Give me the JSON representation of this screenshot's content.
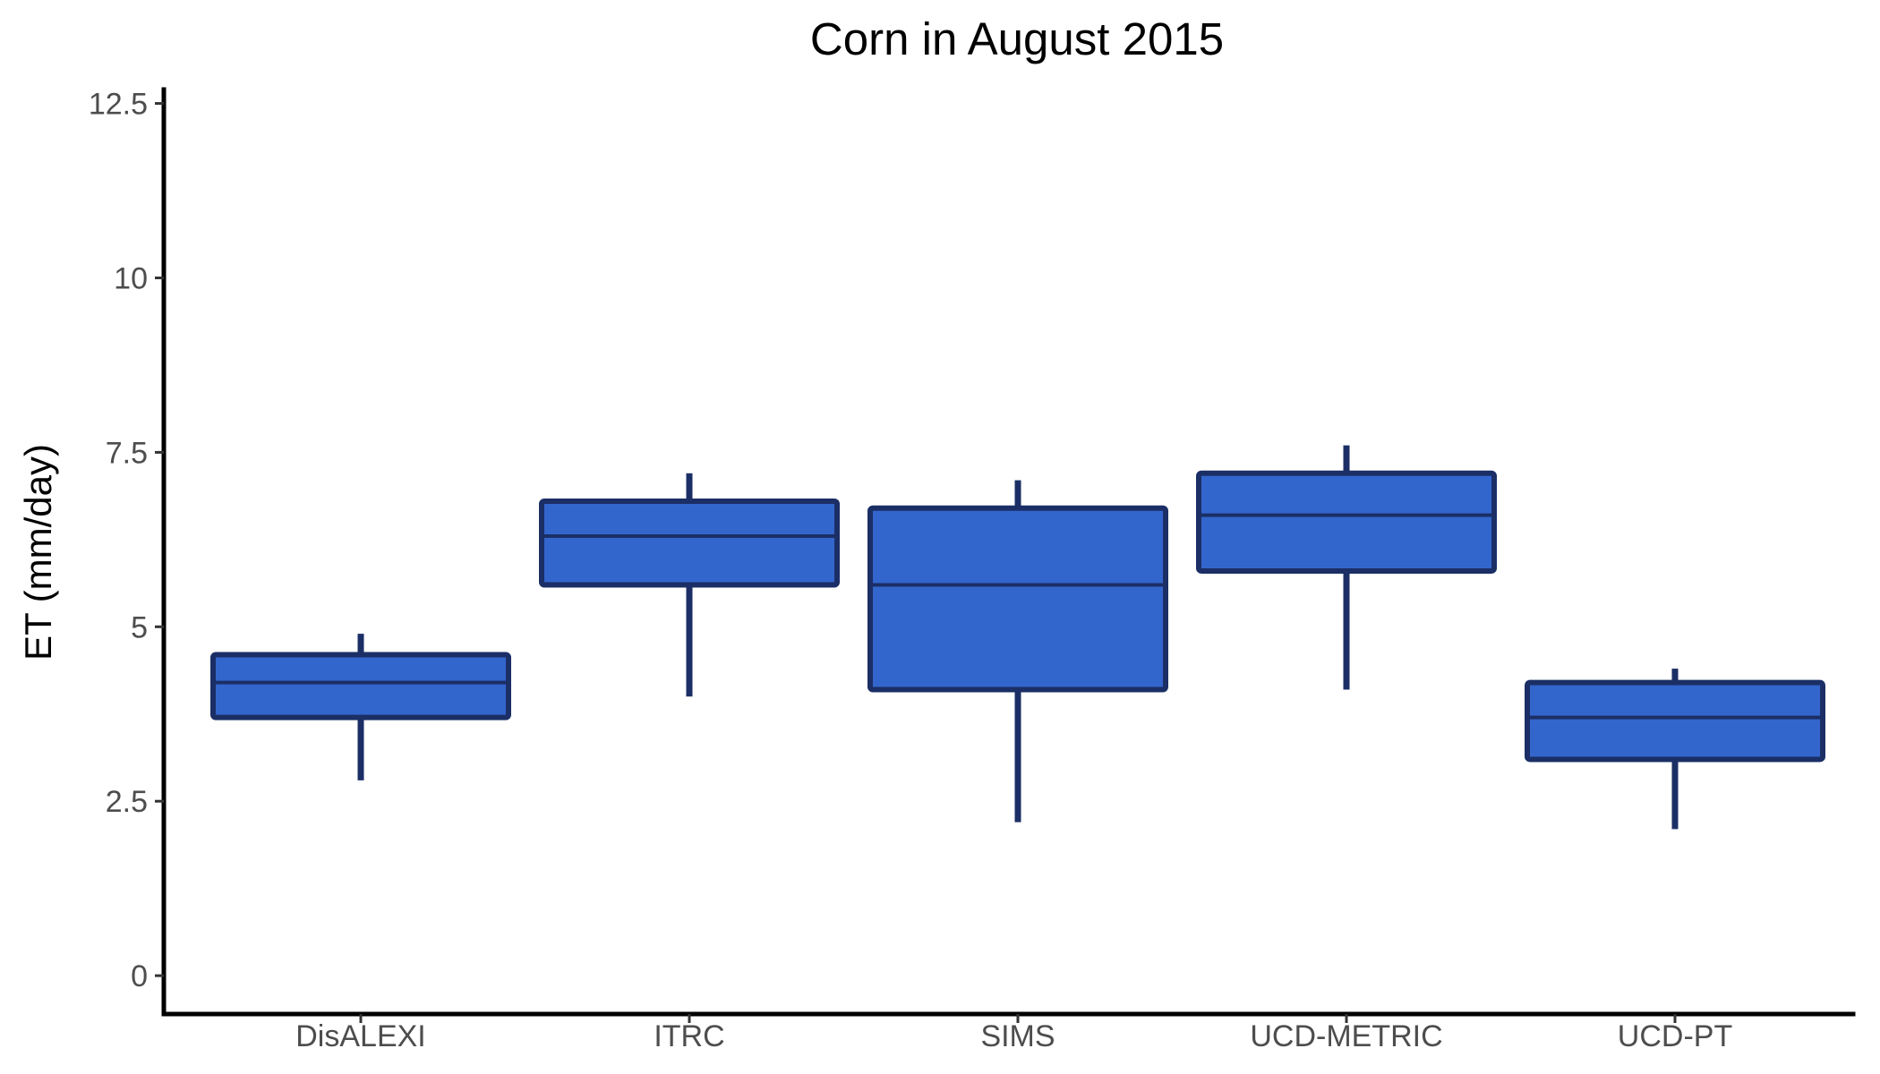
{
  "chart_data": {
    "type": "boxplot",
    "title": "Corn in August 2015",
    "xlabel": "",
    "ylabel": "ET (mm/day)",
    "ylim": [
      -0.55,
      12.7
    ],
    "yticks": [
      0,
      2.5,
      5,
      7.5,
      10,
      12.5
    ],
    "ytick_labels": [
      "0",
      "2.5",
      "5",
      "7.5",
      "10",
      "12.5"
    ],
    "grid": false,
    "legend": "none",
    "categories": [
      "DisALEXI",
      "ITRC",
      "SIMS",
      "UCD-METRIC",
      "UCD-PT"
    ],
    "series": [
      {
        "name": "DisALEXI",
        "whisker_low": 2.8,
        "q1": 3.7,
        "median": 4.2,
        "q3": 4.6,
        "whisker_high": 4.9
      },
      {
        "name": "ITRC",
        "whisker_low": 4.0,
        "q1": 5.6,
        "median": 6.3,
        "q3": 6.8,
        "whisker_high": 7.2
      },
      {
        "name": "SIMS",
        "whisker_low": 2.2,
        "q1": 4.1,
        "median": 5.6,
        "q3": 6.7,
        "whisker_high": 7.1
      },
      {
        "name": "UCD-METRIC",
        "whisker_low": 4.1,
        "q1": 5.8,
        "median": 6.6,
        "q3": 7.2,
        "whisker_high": 7.6
      },
      {
        "name": "UCD-PT",
        "whisker_low": 2.1,
        "q1": 3.1,
        "median": 3.7,
        "q3": 4.2,
        "whisker_high": 4.4
      }
    ],
    "colors": {
      "box_fill": "#3366cc",
      "box_outline": "#1b2f66",
      "axis": "#000000"
    }
  }
}
